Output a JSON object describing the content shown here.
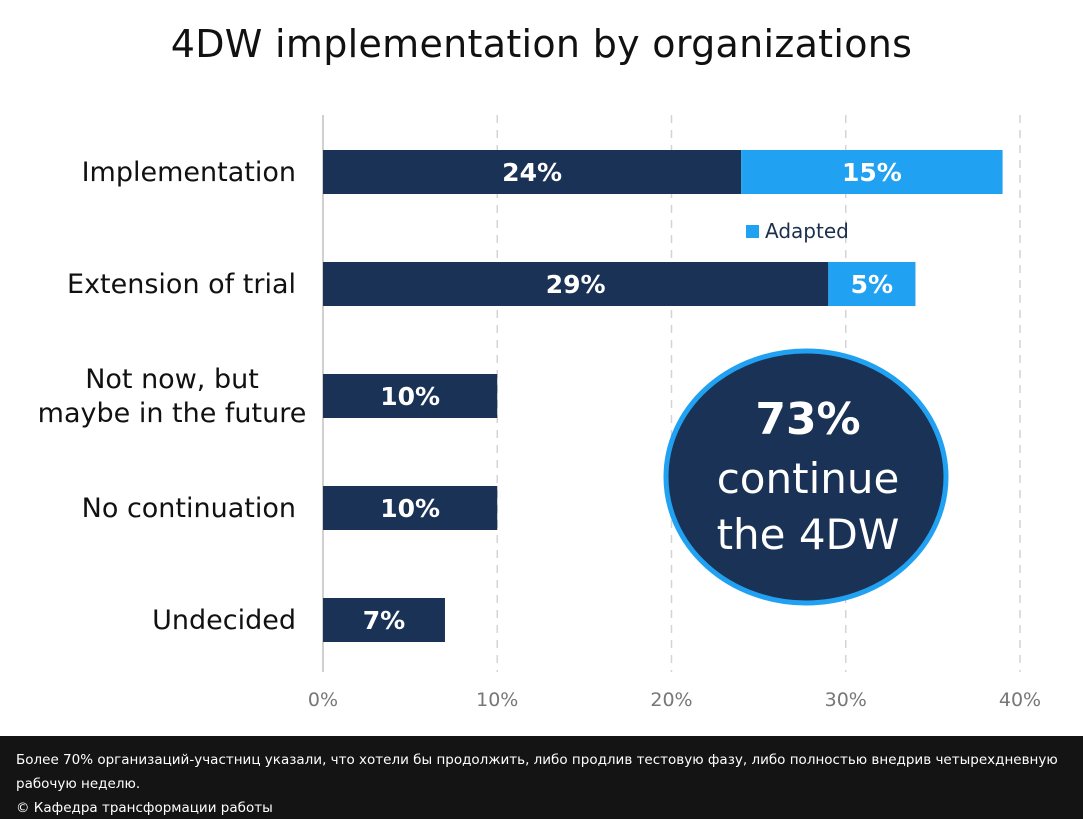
{
  "chart_data": {
    "type": "bar",
    "orientation": "horizontal",
    "stacked": true,
    "title": "4DW implementation by organizations",
    "categories": [
      [
        "Implementation"
      ],
      [
        "Extension of trial"
      ],
      [
        "Not now, but",
        "maybe in the future"
      ],
      [
        "No continuation"
      ],
      [
        "Undecided"
      ]
    ],
    "series": [
      {
        "values": [
          24,
          29,
          10,
          10,
          7
        ],
        "labels": [
          "24%",
          "29%",
          "10%",
          "10%",
          "7%"
        ],
        "color": "#1b3257"
      },
      {
        "name": "Adapted",
        "values": [
          15,
          5,
          0,
          0,
          0
        ],
        "labels": [
          "15%",
          "5%",
          "",
          "",
          ""
        ],
        "color": "#21a1f1"
      }
    ],
    "xlim": [
      0,
      40
    ],
    "xticks": [
      0,
      10,
      20,
      30,
      40
    ],
    "xtick_labels": [
      "0%",
      "10%",
      "20%",
      "30%",
      "40%"
    ],
    "grid": "vertical dashed",
    "legend": {
      "entry": "Adapted",
      "placement": "below the first bar"
    },
    "callout": {
      "lines": [
        "73%",
        "continue",
        "the 4DW"
      ],
      "fill": "#1b3257",
      "border": "#21a1f1"
    }
  },
  "caption": {
    "text": "Более 70% организаций-участниц указали, что хотели бы продолжить, либо продлив тестовую фазу, либо полностью внедрив четырехдневную рабочую неделю.",
    "credit": "© Кафедра трансформации работы"
  },
  "colors": {
    "primary": "#1b3257",
    "accent": "#21a1f1",
    "caption_bg": "#141414"
  }
}
